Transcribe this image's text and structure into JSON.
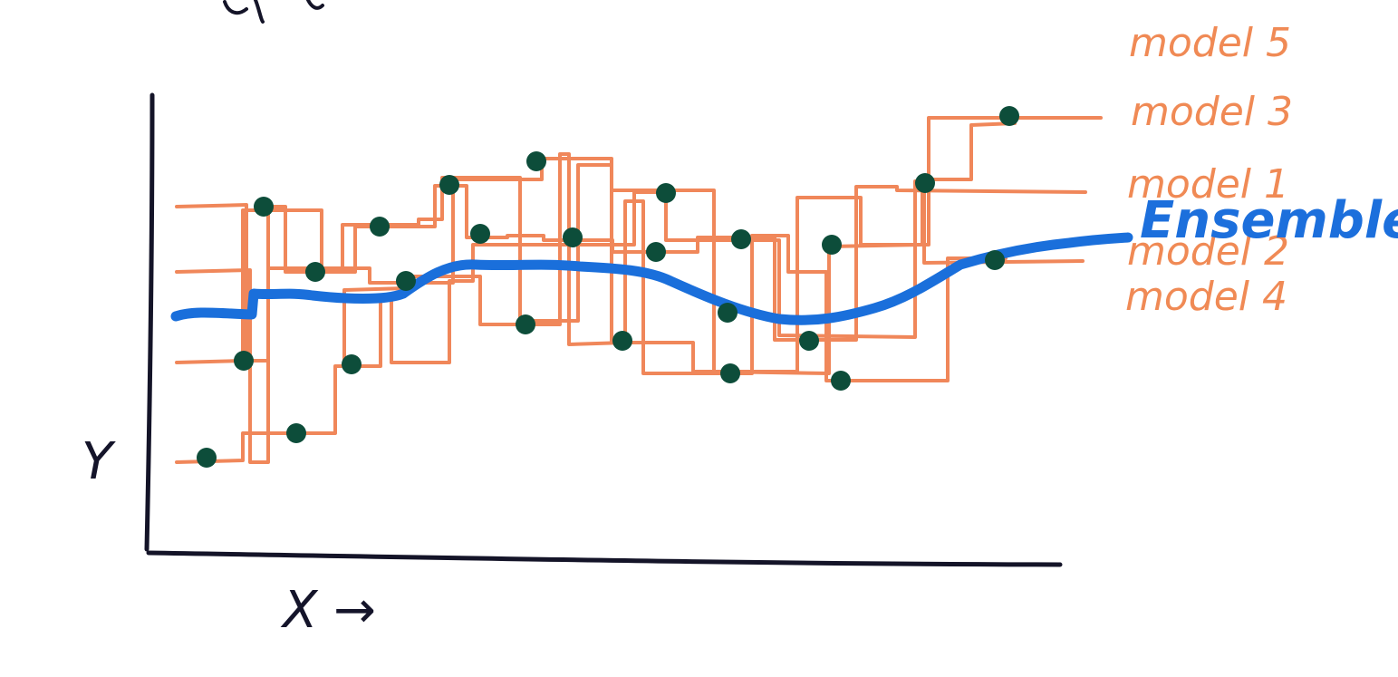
{
  "diagram": {
    "colors": {
      "model_lines": "#f0875a",
      "ensemble_line": "#1a6fdb",
      "data_points": "#0d4d3a",
      "axes": "#141428"
    },
    "labels": {
      "x_axis": "X →",
      "y_axis": "Y",
      "ensemble": "Ensemble",
      "models": [
        "model 5",
        "model 3",
        "model 1",
        "model 2",
        "model 4"
      ]
    }
  }
}
